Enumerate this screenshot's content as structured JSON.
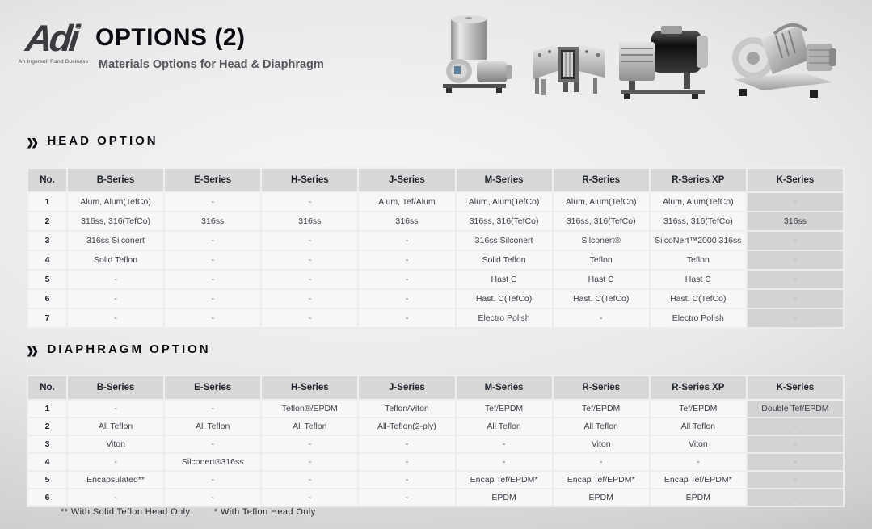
{
  "header": {
    "logo_text": "Adi",
    "logo_registered": "®",
    "logo_tagline": "An Ingersoll Rand Business",
    "title": "OPTIONS (2)",
    "subtitle": "Materials Options for Head & Diaphragm"
  },
  "product_images": [
    "canister-diaphragm-pump-photo",
    "twin-head-diaphragm-pump-photo",
    "black-motor-diaphragm-pump-photo",
    "compressor-on-baseplate-photo"
  ],
  "icons": {
    "section_marker": "»"
  },
  "colors": {
    "header_row_bg": "#d7d7d7",
    "cell_bg": "#f7f7f7",
    "k_column_bg": "#d3d3d3",
    "text_dark": "#1e222b",
    "text_cell": "#3c404b",
    "background_gray": "#cfcfcf"
  },
  "head_option": {
    "heading": "HEAD OPTION",
    "columns": [
      "No.",
      "B-Series",
      "E-Series",
      "H-Series",
      "J-Series",
      "M-Series",
      "R-Series",
      "R-Series XP",
      "K-Series"
    ],
    "rows": [
      [
        "1",
        "Alum, Alum(TefCo)",
        "-",
        "-",
        "Alum, Tef/Alum",
        "Alum, Alum(TefCo)",
        "Alum, Alum(TefCo)",
        "Alum, Alum(TefCo)",
        "-"
      ],
      [
        "2",
        "316ss, 316(TefCo)",
        "316ss",
        "316ss",
        "316ss",
        "316ss, 316(TefCo)",
        "316ss, 316(TefCo)",
        "316ss, 316(TefCo)",
        "316ss"
      ],
      [
        "3",
        "316ss Silconert",
        "-",
        "-",
        "-",
        "316ss Silconert",
        "Silconert®",
        "SilcoNert™2000 316ss",
        "-"
      ],
      [
        "4",
        "Solid Teflon",
        "-",
        "-",
        "-",
        "Solid Teflon",
        "Teflon",
        "Teflon",
        "-"
      ],
      [
        "5",
        "-",
        "-",
        "-",
        "-",
        "Hast C",
        "Hast C",
        "Hast C",
        "-"
      ],
      [
        "6",
        "-",
        "-",
        "-",
        "-",
        "Hast. C(TefCo)",
        "Hast. C(TefCo)",
        "Hast. C(TefCo)",
        "-"
      ],
      [
        "7",
        "-",
        "-",
        "-",
        "-",
        "Electro Polish",
        "-",
        "Electro Polish",
        "-"
      ]
    ]
  },
  "diaphragm_option": {
    "heading": "DIAPHRAGM OPTION",
    "columns": [
      "No.",
      "B-Series",
      "E-Series",
      "H-Series",
      "J-Series",
      "M-Series",
      "R-Series",
      "R-Series XP",
      "K-Series"
    ],
    "rows": [
      [
        "1",
        "-",
        "-",
        "Teflon®/EPDM",
        "Teflon/Viton",
        "Tef/EPDM",
        "Tef/EPDM",
        "Tef/EPDM",
        "Double Tef/EPDM"
      ],
      [
        "2",
        "All Teflon",
        "All Teflon",
        "All Teflon",
        "All-Teflon(2-ply)",
        "All Teflon",
        "All Teflon",
        "All Teflon",
        "-"
      ],
      [
        "3",
        "Viton",
        "-",
        "-",
        "-",
        "-",
        "Viton",
        "Viton",
        "-"
      ],
      [
        "4",
        "-",
        "Silconert®316ss",
        "-",
        "-",
        "-",
        "-",
        "-",
        "-"
      ],
      [
        "5",
        "Encapsulated**",
        "-",
        "-",
        "-",
        "Encap Tef/EPDM*",
        "Encap Tef/EPDM*",
        "Encap Tef/EPDM*",
        "-"
      ],
      [
        "6",
        "-",
        "-",
        "-",
        "-",
        "EPDM",
        "EPDM",
        "EPDM",
        "-"
      ]
    ]
  },
  "footnotes": {
    "note1": "** With Solid Teflon Head Only",
    "note2": "* With Teflon Head Only"
  }
}
